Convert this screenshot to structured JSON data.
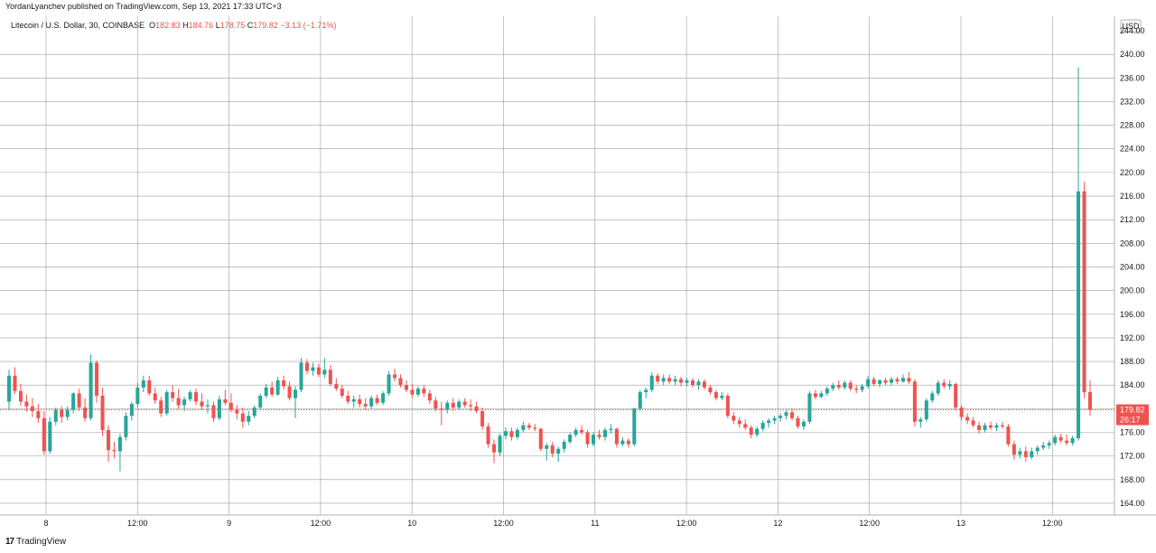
{
  "publisher": {
    "text": "YordanLyanchev published on TradingView.com, Sep 13, 2021 17:33 UTC+3"
  },
  "legend": {
    "symbol": "Litecoin / U.S. Dollar, 30, COINBASE",
    "open_label": "O",
    "open": "182.83",
    "high_label": "H",
    "high": "184.76",
    "low_label": "L",
    "low": "178.75",
    "close_label": "C",
    "close": "179.82",
    "change": "−3.13 (−1.71%)"
  },
  "footer": {
    "logo_text": "TradingView",
    "logo_mark": "17"
  },
  "colors": {
    "up": "#26a69a",
    "down": "#ef5350",
    "grid": "#9e9e9e",
    "text": "#131722"
  },
  "chart_data": {
    "type": "candlestick",
    "currency": "USD",
    "ylim": [
      162,
      244
    ],
    "y_ticks": [
      164,
      168,
      172,
      176,
      180,
      184,
      188,
      192,
      196,
      200,
      204,
      208,
      212,
      216,
      220,
      224,
      228,
      232,
      236,
      240
    ],
    "y_tick_labels": [
      "164.00",
      "168.00",
      "172.00",
      "176.00",
      "180.00",
      "184.00",
      "188.00",
      "192.00",
      "196.00",
      "200.00",
      "204.00",
      "208.00",
      "212.00",
      "216.00",
      "220.00",
      "224.00",
      "228.00",
      "232.00",
      "236.00",
      "240.00"
    ],
    "top_tick_label": "244.00",
    "x_ticks": [
      "8",
      "12:00",
      "9",
      "12:00",
      "10",
      "12:00",
      "11",
      "12:00",
      "12",
      "12:00",
      "13",
      "12:00"
    ],
    "last_price": "179.82",
    "countdown": "26:17",
    "candles": [
      [
        181.2,
        186.6,
        179.8,
        185.6
      ],
      [
        185.6,
        187.0,
        182.5,
        183.0
      ],
      [
        183.0,
        184.2,
        180.5,
        181.2
      ],
      [
        181.2,
        182.4,
        179.5,
        180.4
      ],
      [
        180.4,
        181.8,
        178.6,
        179.6
      ],
      [
        179.6,
        180.8,
        177.6,
        178.4
      ],
      [
        178.4,
        179.6,
        172.2,
        172.8
      ],
      [
        172.8,
        178.6,
        172.4,
        177.8
      ],
      [
        177.8,
        180.2,
        177.2,
        179.8
      ],
      [
        179.8,
        180.4,
        177.6,
        178.6
      ],
      [
        178.6,
        180.4,
        178.0,
        179.8
      ],
      [
        179.8,
        182.8,
        179.2,
        182.6
      ],
      [
        182.6,
        183.4,
        179.6,
        180.2
      ],
      [
        180.2,
        181.8,
        177.8,
        178.4
      ],
      [
        178.4,
        189.2,
        178.0,
        187.8
      ],
      [
        187.8,
        188.2,
        181.0,
        182.2
      ],
      [
        182.2,
        183.6,
        175.4,
        176.4
      ],
      [
        176.4,
        177.2,
        171.0,
        173.0
      ],
      [
        173.0,
        174.4,
        171.6,
        172.8
      ],
      [
        172.8,
        175.8,
        169.4,
        175.2
      ],
      [
        175.2,
        179.4,
        174.6,
        178.8
      ],
      [
        178.8,
        181.2,
        178.0,
        180.8
      ],
      [
        180.8,
        184.4,
        180.2,
        183.6
      ],
      [
        183.6,
        185.6,
        182.8,
        184.8
      ],
      [
        184.8,
        185.6,
        182.2,
        182.6
      ],
      [
        182.6,
        183.6,
        180.8,
        181.4
      ],
      [
        181.4,
        182.0,
        178.6,
        179.2
      ],
      [
        179.2,
        183.2,
        178.8,
        182.8
      ],
      [
        182.8,
        184.0,
        181.2,
        181.8
      ],
      [
        181.8,
        183.4,
        180.0,
        180.6
      ],
      [
        180.6,
        182.0,
        179.6,
        181.6
      ],
      [
        181.6,
        183.2,
        181.2,
        182.8
      ],
      [
        182.8,
        183.4,
        180.6,
        181.2
      ],
      [
        181.2,
        182.6,
        179.8,
        180.4
      ],
      [
        180.4,
        181.6,
        179.2,
        180.6
      ],
      [
        180.6,
        181.2,
        177.8,
        178.4
      ],
      [
        178.4,
        182.2,
        178.0,
        181.6
      ],
      [
        181.6,
        183.2,
        180.6,
        181.0
      ],
      [
        181.0,
        182.6,
        179.4,
        179.8
      ],
      [
        179.8,
        180.6,
        178.2,
        179.2
      ],
      [
        179.2,
        180.2,
        176.8,
        177.8
      ],
      [
        177.8,
        179.6,
        177.2,
        178.8
      ],
      [
        178.8,
        180.6,
        178.4,
        180.2
      ],
      [
        180.2,
        182.6,
        179.8,
        182.2
      ],
      [
        182.2,
        184.2,
        181.8,
        183.6
      ],
      [
        183.6,
        184.6,
        182.0,
        182.4
      ],
      [
        182.4,
        185.4,
        182.2,
        184.8
      ],
      [
        184.8,
        185.6,
        183.2,
        183.8
      ],
      [
        183.8,
        184.6,
        181.4,
        181.8
      ],
      [
        181.8,
        183.8,
        178.4,
        183.2
      ],
      [
        183.2,
        188.6,
        182.8,
        187.8
      ],
      [
        187.8,
        188.4,
        185.8,
        186.4
      ],
      [
        186.4,
        187.8,
        185.6,
        187.0
      ],
      [
        187.0,
        187.6,
        185.4,
        185.8
      ],
      [
        185.8,
        188.6,
        185.2,
        186.6
      ],
      [
        186.6,
        187.4,
        183.8,
        184.2
      ],
      [
        184.2,
        185.2,
        183.0,
        183.4
      ],
      [
        183.4,
        184.0,
        181.8,
        182.2
      ],
      [
        182.2,
        183.0,
        180.8,
        181.2
      ],
      [
        181.2,
        182.2,
        180.2,
        181.6
      ],
      [
        181.6,
        182.4,
        180.2,
        180.8
      ],
      [
        180.8,
        181.8,
        179.8,
        180.4
      ],
      [
        180.4,
        182.2,
        180.0,
        181.8
      ],
      [
        181.8,
        182.4,
        180.6,
        181.0
      ],
      [
        181.0,
        183.0,
        180.6,
        182.6
      ],
      [
        182.6,
        186.4,
        182.2,
        185.8
      ],
      [
        185.8,
        186.8,
        184.6,
        185.2
      ],
      [
        185.2,
        185.8,
        183.6,
        184.0
      ],
      [
        184.0,
        184.8,
        182.8,
        183.2
      ],
      [
        183.2,
        184.2,
        181.8,
        182.4
      ],
      [
        182.4,
        183.8,
        182.0,
        183.4
      ],
      [
        183.4,
        184.0,
        182.0,
        182.6
      ],
      [
        182.6,
        183.2,
        180.8,
        181.4
      ],
      [
        181.4,
        182.0,
        179.6,
        180.0
      ],
      [
        180.0,
        181.2,
        177.2,
        179.8
      ],
      [
        179.8,
        181.4,
        179.2,
        181.0
      ],
      [
        181.0,
        181.8,
        179.6,
        180.2
      ],
      [
        180.2,
        181.6,
        179.8,
        181.2
      ],
      [
        181.2,
        181.8,
        180.2,
        180.6
      ],
      [
        180.6,
        181.6,
        179.6,
        180.4
      ],
      [
        180.4,
        181.2,
        179.2,
        179.6
      ],
      [
        179.6,
        180.2,
        176.4,
        177.0
      ],
      [
        177.0,
        177.6,
        173.4,
        174.0
      ],
      [
        174.0,
        174.8,
        170.8,
        172.6
      ],
      [
        172.6,
        175.8,
        172.0,
        175.4
      ],
      [
        175.4,
        176.8,
        174.8,
        176.2
      ],
      [
        176.2,
        176.8,
        174.6,
        175.2
      ],
      [
        175.2,
        176.8,
        174.8,
        176.4
      ],
      [
        176.4,
        177.8,
        176.0,
        177.2
      ],
      [
        177.2,
        177.6,
        176.4,
        176.8
      ],
      [
        176.8,
        177.4,
        176.2,
        176.6
      ],
      [
        176.6,
        176.8,
        172.8,
        173.2
      ],
      [
        173.2,
        174.2,
        171.2,
        173.8
      ],
      [
        173.8,
        174.4,
        171.8,
        172.4
      ],
      [
        172.4,
        173.6,
        171.0,
        173.2
      ],
      [
        173.2,
        174.8,
        172.6,
        174.4
      ],
      [
        174.4,
        176.0,
        174.0,
        175.6
      ],
      [
        175.6,
        176.8,
        175.2,
        176.4
      ],
      [
        176.4,
        177.2,
        175.6,
        176.0
      ],
      [
        176.0,
        176.4,
        173.4,
        174.0
      ],
      [
        174.0,
        176.0,
        173.6,
        175.6
      ],
      [
        175.6,
        176.4,
        174.8,
        175.2
      ],
      [
        175.2,
        176.8,
        174.6,
        176.4
      ],
      [
        176.4,
        177.4,
        175.8,
        176.6
      ],
      [
        176.6,
        176.8,
        173.4,
        174.0
      ],
      [
        174.0,
        175.2,
        173.6,
        174.6
      ],
      [
        174.6,
        175.0,
        173.4,
        174.0
      ],
      [
        174.0,
        180.2,
        173.6,
        180.0
      ],
      [
        180.0,
        183.2,
        179.6,
        182.8
      ],
      [
        182.8,
        183.6,
        181.8,
        183.2
      ],
      [
        183.2,
        186.2,
        182.8,
        185.6
      ],
      [
        185.6,
        186.0,
        184.2,
        184.6
      ],
      [
        184.6,
        185.8,
        184.0,
        185.2
      ],
      [
        185.2,
        185.8,
        184.2,
        184.6
      ],
      [
        184.6,
        185.6,
        184.0,
        185.0
      ],
      [
        185.0,
        185.4,
        183.8,
        184.4
      ],
      [
        184.4,
        185.2,
        183.8,
        184.8
      ],
      [
        184.8,
        185.2,
        183.6,
        184.0
      ],
      [
        184.0,
        185.0,
        183.2,
        184.6
      ],
      [
        184.6,
        185.0,
        183.2,
        183.6
      ],
      [
        183.6,
        184.0,
        182.4,
        182.8
      ],
      [
        182.8,
        183.2,
        181.4,
        181.8
      ],
      [
        181.8,
        182.8,
        181.4,
        182.2
      ],
      [
        182.2,
        182.6,
        178.4,
        178.8
      ],
      [
        178.8,
        179.4,
        177.4,
        178.0
      ],
      [
        178.0,
        178.6,
        176.8,
        177.4
      ],
      [
        177.4,
        178.2,
        176.4,
        176.8
      ],
      [
        176.8,
        177.2,
        175.0,
        175.6
      ],
      [
        175.6,
        177.0,
        175.2,
        176.6
      ],
      [
        176.6,
        178.0,
        176.2,
        177.6
      ],
      [
        177.6,
        178.4,
        176.8,
        178.0
      ],
      [
        178.0,
        178.8,
        177.4,
        178.4
      ],
      [
        178.4,
        179.2,
        177.8,
        178.8
      ],
      [
        178.8,
        179.8,
        178.2,
        179.4
      ],
      [
        179.4,
        180.0,
        178.0,
        178.4
      ],
      [
        178.4,
        178.8,
        176.6,
        177.0
      ],
      [
        177.0,
        178.2,
        176.4,
        177.8
      ],
      [
        177.8,
        183.0,
        177.4,
        182.6
      ],
      [
        182.6,
        183.2,
        181.6,
        182.0
      ],
      [
        182.0,
        183.0,
        181.8,
        182.6
      ],
      [
        182.6,
        183.8,
        182.2,
        183.4
      ],
      [
        183.4,
        184.4,
        183.0,
        184.0
      ],
      [
        184.0,
        184.8,
        183.2,
        183.6
      ],
      [
        183.6,
        184.8,
        183.2,
        184.4
      ],
      [
        184.4,
        184.8,
        183.0,
        183.4
      ],
      [
        183.4,
        184.0,
        182.6,
        183.2
      ],
      [
        183.2,
        184.2,
        182.8,
        183.8
      ],
      [
        183.8,
        185.6,
        183.4,
        185.0
      ],
      [
        185.0,
        185.4,
        183.8,
        184.2
      ],
      [
        184.2,
        185.0,
        183.6,
        184.8
      ],
      [
        184.8,
        185.2,
        184.0,
        184.4
      ],
      [
        184.4,
        185.4,
        184.0,
        185.0
      ],
      [
        185.0,
        185.4,
        184.2,
        184.6
      ],
      [
        184.6,
        185.8,
        184.4,
        185.2
      ],
      [
        185.2,
        186.2,
        184.2,
        184.6
      ],
      [
        184.6,
        185.0,
        177.0,
        177.8
      ],
      [
        177.8,
        178.6,
        176.8,
        178.2
      ],
      [
        178.2,
        181.8,
        177.8,
        181.4
      ],
      [
        181.4,
        183.0,
        181.0,
        182.6
      ],
      [
        182.6,
        184.8,
        182.2,
        184.4
      ],
      [
        184.4,
        185.0,
        183.4,
        183.8
      ],
      [
        183.8,
        184.8,
        183.2,
        184.2
      ],
      [
        184.2,
        184.4,
        179.8,
        180.2
      ],
      [
        180.2,
        180.6,
        178.0,
        178.6
      ],
      [
        178.6,
        179.2,
        177.4,
        178.0
      ],
      [
        178.0,
        178.6,
        176.8,
        177.2
      ],
      [
        177.2,
        177.8,
        175.8,
        176.4
      ],
      [
        176.4,
        177.6,
        176.0,
        177.2
      ],
      [
        177.2,
        177.8,
        176.4,
        176.8
      ],
      [
        176.8,
        177.6,
        176.2,
        177.2
      ],
      [
        177.2,
        177.8,
        176.6,
        177.0
      ],
      [
        177.0,
        177.4,
        173.6,
        174.0
      ],
      [
        174.0,
        174.6,
        171.4,
        172.2
      ],
      [
        172.2,
        173.4,
        171.6,
        172.8
      ],
      [
        172.8,
        173.6,
        171.0,
        171.8
      ],
      [
        171.8,
        173.4,
        171.4,
        172.8
      ],
      [
        172.8,
        173.8,
        172.2,
        173.4
      ],
      [
        173.4,
        174.4,
        173.0,
        173.8
      ],
      [
        173.8,
        174.6,
        173.2,
        174.2
      ],
      [
        174.2,
        175.6,
        173.8,
        175.2
      ],
      [
        175.2,
        175.8,
        174.2,
        174.6
      ],
      [
        174.6,
        175.6,
        173.8,
        174.2
      ],
      [
        174.2,
        175.4,
        173.8,
        175.0
      ],
      [
        175.0,
        237.8,
        174.6,
        216.8
      ],
      [
        216.8,
        218.4,
        181.8,
        182.8
      ],
      [
        182.8,
        184.8,
        178.8,
        179.8
      ]
    ]
  }
}
